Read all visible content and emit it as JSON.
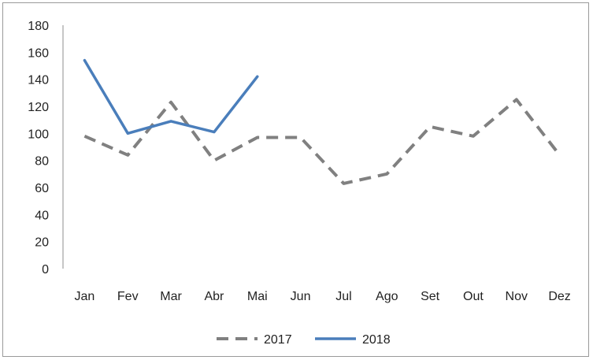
{
  "chart_data": {
    "type": "line",
    "title": "",
    "xlabel": "",
    "ylabel": "",
    "categories": [
      "Jan",
      "Fev",
      "Mar",
      "Abr",
      "Mai",
      "Jun",
      "Jul",
      "Ago",
      "Set",
      "Out",
      "Nov",
      "Dez"
    ],
    "ylim": [
      0,
      180
    ],
    "yticks": [
      0,
      20,
      40,
      60,
      80,
      100,
      120,
      140,
      160,
      180
    ],
    "grid": false,
    "legend_position": "bottom",
    "series": [
      {
        "name": "2017",
        "style": "dashed",
        "color": "#808080",
        "values": [
          98,
          84,
          123,
          80,
          97,
          97,
          63,
          70,
          105,
          98,
          125,
          84
        ]
      },
      {
        "name": "2018",
        "style": "solid",
        "color": "#4a7ebb",
        "values": [
          154,
          100,
          109,
          101,
          142,
          null,
          null,
          null,
          null,
          null,
          null,
          null
        ]
      }
    ]
  }
}
